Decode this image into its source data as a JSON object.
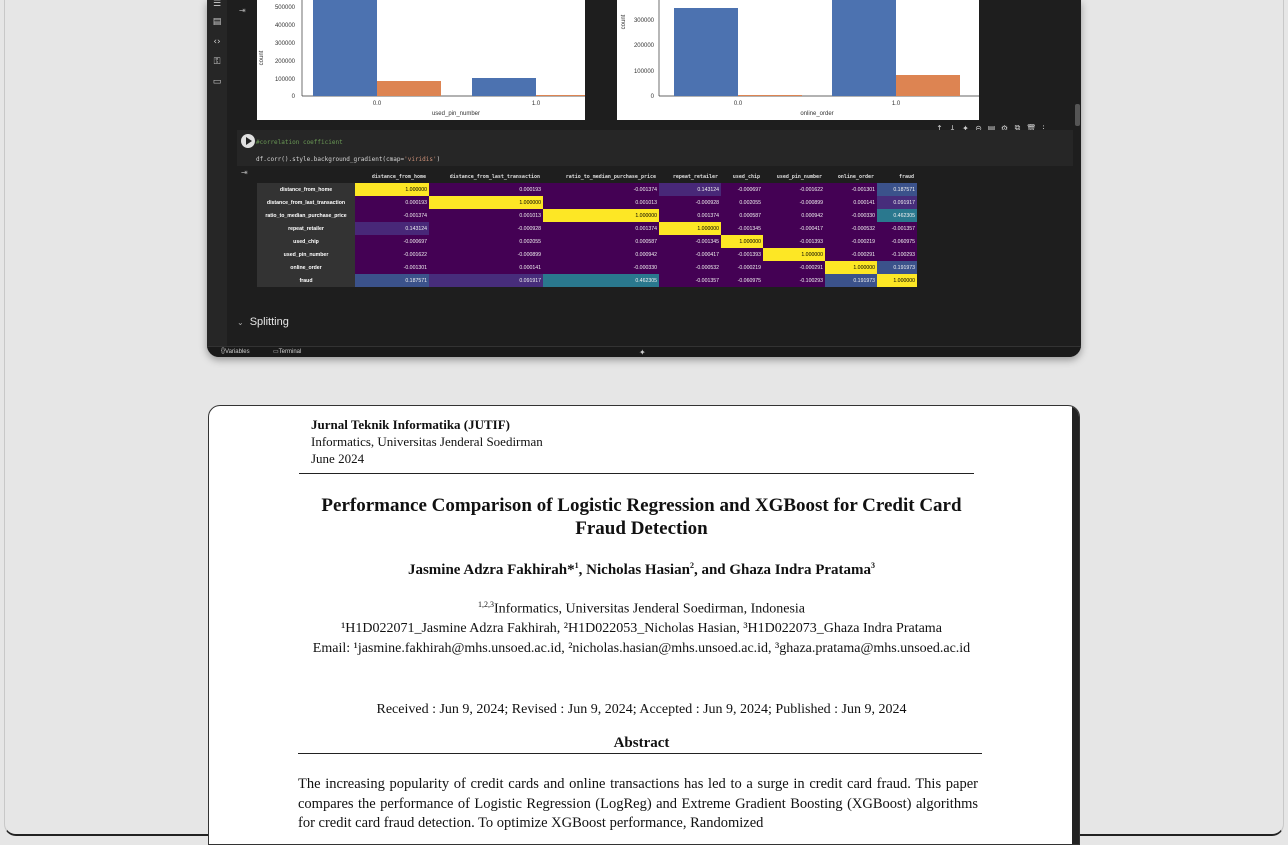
{
  "colab": {
    "rail_icons": [
      "list-icon",
      "file-icon",
      "code-icon",
      "key-icon",
      "folder-icon"
    ],
    "chart_left": {
      "ylabel": "count",
      "xlabel": "used_pin_number",
      "yticks": [
        "500000",
        "400000",
        "300000",
        "200000",
        "100000",
        "0"
      ],
      "xticks": [
        "0.0",
        "1.0"
      ]
    },
    "chart_right": {
      "ylabel": "count",
      "xlabel": "online_order",
      "yticks": [
        "300000",
        "200000",
        "100000",
        "0"
      ],
      "xticks": [
        "0.0",
        "1.0"
      ]
    },
    "cell": {
      "comment": "#correlation coefficient",
      "code_prefix": "df.corr().style.background_gradient(cmap=",
      "code_string": "'viridis'",
      "code_suffix": ")"
    },
    "cell_toolbar": [
      "↑",
      "↓",
      "✦",
      "⊝",
      "▤",
      "⚙",
      "⧉",
      "🗑",
      "⋮"
    ],
    "section": "Splitting",
    "status_variables": "Variables",
    "status_terminal": "Terminal"
  },
  "corr_table": {
    "columns": [
      "distance_from_home",
      "distance_from_last_transaction",
      "ratio_to_median_purchase_price",
      "repeat_retailer",
      "used_chip",
      "used_pin_number",
      "online_order",
      "fraud"
    ],
    "rows": [
      {
        "name": "distance_from_home",
        "values": [
          "1.000000",
          "0.000193",
          "-0.001374",
          "0.143124",
          "-0.000697",
          "-0.001622",
          "-0.001301",
          "0.187571"
        ],
        "colors": [
          "#fde725",
          "#440154",
          "#440154",
          "#482878",
          "#440154",
          "#440154",
          "#440154",
          "#3b528b"
        ],
        "dark": [
          true,
          false,
          false,
          false,
          false,
          false,
          false,
          false
        ]
      },
      {
        "name": "distance_from_last_transaction",
        "values": [
          "0.000193",
          "1.000000",
          "0.001013",
          "-0.000928",
          "0.002055",
          "-0.000899",
          "0.000141",
          "0.091917"
        ],
        "colors": [
          "#440154",
          "#fde725",
          "#440154",
          "#440154",
          "#440154",
          "#440154",
          "#440154",
          "#472d7b"
        ],
        "dark": [
          false,
          true,
          false,
          false,
          false,
          false,
          false,
          false
        ]
      },
      {
        "name": "ratio_to_median_purchase_price",
        "values": [
          "-0.001374",
          "0.001013",
          "1.000000",
          "0.001374",
          "0.000587",
          "0.000942",
          "-0.000330",
          "0.462305"
        ],
        "colors": [
          "#440154",
          "#440154",
          "#fde725",
          "#440154",
          "#440154",
          "#440154",
          "#440154",
          "#2a788e"
        ],
        "dark": [
          false,
          false,
          true,
          false,
          false,
          false,
          false,
          false
        ]
      },
      {
        "name": "repeat_retailer",
        "values": [
          "0.143124",
          "-0.000928",
          "0.001374",
          "1.000000",
          "-0.001345",
          "-0.000417",
          "-0.000532",
          "-0.001357"
        ],
        "colors": [
          "#482878",
          "#440154",
          "#440154",
          "#fde725",
          "#440154",
          "#440154",
          "#440154",
          "#440154"
        ],
        "dark": [
          false,
          false,
          false,
          true,
          false,
          false,
          false,
          false
        ]
      },
      {
        "name": "used_chip",
        "values": [
          "-0.000697",
          "0.002055",
          "0.000587",
          "-0.001345",
          "1.000000",
          "-0.001393",
          "-0.000219",
          "-0.060975"
        ],
        "colors": [
          "#440154",
          "#440154",
          "#440154",
          "#440154",
          "#fde725",
          "#440154",
          "#440154",
          "#440154"
        ],
        "dark": [
          false,
          false,
          false,
          false,
          true,
          false,
          false,
          false
        ]
      },
      {
        "name": "used_pin_number",
        "values": [
          "-0.001622",
          "-0.000899",
          "0.000942",
          "-0.000417",
          "-0.001393",
          "1.000000",
          "-0.000291",
          "-0.100293"
        ],
        "colors": [
          "#440154",
          "#440154",
          "#440154",
          "#440154",
          "#440154",
          "#fde725",
          "#440154",
          "#440154"
        ],
        "dark": [
          false,
          false,
          false,
          false,
          false,
          true,
          false,
          false
        ]
      },
      {
        "name": "online_order",
        "values": [
          "-0.001301",
          "0.000141",
          "-0.000330",
          "-0.000532",
          "-0.000219",
          "-0.000291",
          "1.000000",
          "0.191973"
        ],
        "colors": [
          "#440154",
          "#440154",
          "#440154",
          "#440154",
          "#440154",
          "#440154",
          "#fde725",
          "#3b528b"
        ],
        "dark": [
          false,
          false,
          false,
          false,
          false,
          false,
          true,
          false
        ]
      },
      {
        "name": "fraud",
        "values": [
          "0.187571",
          "0.091917",
          "0.462305",
          "-0.001357",
          "-0.060975",
          "-0.100293",
          "0.191973",
          "1.000000"
        ],
        "colors": [
          "#3b528b",
          "#472d7b",
          "#2a788e",
          "#440154",
          "#440154",
          "#440154",
          "#3b528b",
          "#fde725"
        ],
        "dark": [
          false,
          false,
          false,
          false,
          false,
          false,
          false,
          true
        ]
      }
    ]
  },
  "paper": {
    "journal": "Jurnal Teknik Informatika (JUTIF)",
    "institution": "Informatics, Universitas Jenderal Soedirman",
    "date": "June 2024",
    "title": "Performance Comparison of Logistic Regression and XGBoost for Credit Card Fraud Detection",
    "authors_a": "Jasmine Adzra Fakhirah*",
    "sup1": "1",
    "authors_b": ", Nicholas Hasian",
    "sup2": "2",
    "authors_c": ", and Ghaza Indra Pratama",
    "sup3": "3",
    "affil_sup": "1,2,3",
    "affil_text": "Informatics, Universitas Jenderal Soedirman, Indonesia",
    "ids_line": "¹H1D022071_Jasmine Adzra Fakhirah, ²H1D022053_Nicholas Hasian, ³H1D022073_Ghaza Indra Pratama",
    "email_line": "Email: ¹jasmine.fakhirah@mhs.unsoed.ac.id, ²nicholas.hasian@mhs.unsoed.ac.id, ³ghaza.pratama@mhs.unsoed.ac.id",
    "dates": "Received : Jun 9, 2024; Revised : Jun 9, 2024; Accepted : Jun 9, 2024; Published : Jun 9, 2024",
    "abstract_heading": "Abstract",
    "abstract_body": "The increasing popularity of credit cards and online transactions has led to a surge in credit card fraud. This paper compares the performance of Logistic Regression (LogReg) and Extreme Gradient Boosting (XGBoost) algorithms for credit card fraud detection. To optimize XGBoost performance, Randomized"
  }
}
